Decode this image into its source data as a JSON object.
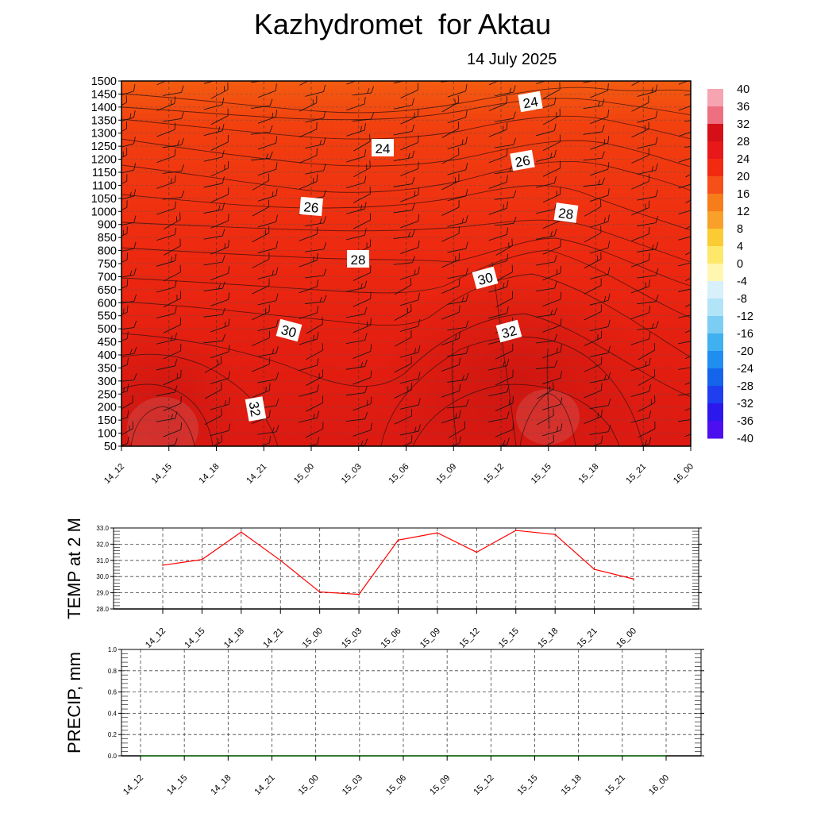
{
  "title": "Kazhydromet  for Aktau",
  "subtitle": "14 July 2025",
  "time_labels": [
    "14_12",
    "14_15",
    "14_18",
    "14_21",
    "15_00",
    "15_03",
    "15_06",
    "15_09",
    "15_12",
    "15_15",
    "15_18",
    "15_21",
    "16_00"
  ],
  "chart_data": [
    {
      "type": "heatmap",
      "name": "cross-section",
      "x": [
        "14_12",
        "14_15",
        "14_18",
        "14_21",
        "15_00",
        "15_03",
        "15_06",
        "15_09",
        "15_12",
        "15_15",
        "15_18",
        "15_21",
        "16_00"
      ],
      "y_ticks": [
        1500,
        1450,
        1400,
        1350,
        1300,
        1250,
        1200,
        1150,
        1100,
        1050,
        1000,
        900,
        850,
        800,
        750,
        700,
        650,
        600,
        550,
        500,
        450,
        400,
        350,
        300,
        250,
        200,
        150,
        100,
        50
      ],
      "ylim": [
        50,
        1500
      ],
      "colorbar": {
        "ticks": [
          40,
          36,
          32,
          28,
          24,
          20,
          16,
          12,
          8,
          4,
          0,
          -4,
          -8,
          -12,
          -16,
          -20,
          -24,
          -28,
          -32,
          -36,
          -40
        ],
        "range": [
          -40,
          40
        ]
      },
      "contour_labels": [
        "24",
        "24",
        "26",
        "26",
        "28",
        "28",
        "30",
        "30",
        "32",
        "32"
      ],
      "background_color": "#ee2a10"
    },
    {
      "type": "line",
      "name": "temp-2m",
      "ylabel": "TEMP at 2 M",
      "x": [
        "14_12",
        "14_15",
        "14_18",
        "14_21",
        "15_00",
        "15_03",
        "15_06",
        "15_09",
        "15_12",
        "15_15",
        "15_18",
        "15_21",
        "16_00"
      ],
      "y_ticks": [
        "33.0",
        "32.0",
        "31.0",
        "30.0",
        "29.0",
        "28.0"
      ],
      "ylim": [
        28,
        33
      ],
      "series": [
        {
          "values": [
            30.7,
            31.05,
            32.75,
            31.0,
            29.05,
            28.9,
            32.25,
            32.7,
            31.5,
            32.85,
            32.6,
            30.45,
            29.85
          ],
          "color": "#ff0000"
        }
      ],
      "grid": true
    },
    {
      "type": "line",
      "name": "precip",
      "ylabel": "PRECIP, mm",
      "x": [
        "14_12",
        "14_15",
        "14_18",
        "14_21",
        "15_00",
        "15_03",
        "15_06",
        "15_09",
        "15_12",
        "15_15",
        "15_18",
        "15_21",
        "16_00"
      ],
      "y_ticks": [
        "1.0",
        "0.8",
        "0.6",
        "0.4",
        "0.2",
        "0.0"
      ],
      "ylim": [
        0,
        1
      ],
      "series": [
        {
          "values": [
            0,
            0,
            0,
            0,
            0,
            0,
            0,
            0,
            0,
            0,
            0,
            0,
            0
          ],
          "color": "#1a7a1a"
        }
      ],
      "grid": true
    }
  ]
}
